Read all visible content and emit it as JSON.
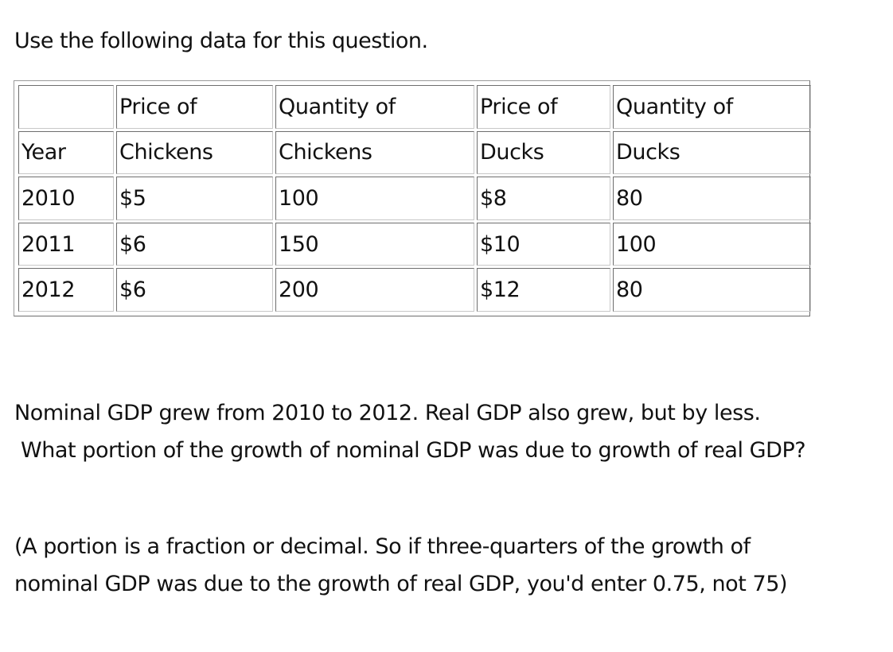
{
  "intro": "Use the following data for this question.",
  "table": {
    "header_top": [
      "",
      "Price of",
      "Quantity of",
      "Price of",
      "Quantity of"
    ],
    "header_bottom": [
      "Year",
      "Chickens",
      "Chickens",
      "Ducks",
      "Ducks"
    ],
    "rows": [
      [
        "2010",
        "$5",
        "100",
        "$8",
        "80"
      ],
      [
        "2011",
        "$6",
        "150",
        "$10",
        "100"
      ],
      [
        "2012",
        "$6",
        "200",
        "$12",
        "80"
      ]
    ]
  },
  "question": {
    "line1": "Nominal GDP grew from 2010 to 2012.  Real GDP also grew, but by less.",
    "line2": "What portion of the growth of nominal GDP was due to growth of real GDP?"
  },
  "note": {
    "line1": "(A portion is a fraction or decimal.  So if three-quarters of the growth of",
    "line2": "nominal GDP was due to the growth of real GDP, you'd enter 0.75, not 75)"
  }
}
